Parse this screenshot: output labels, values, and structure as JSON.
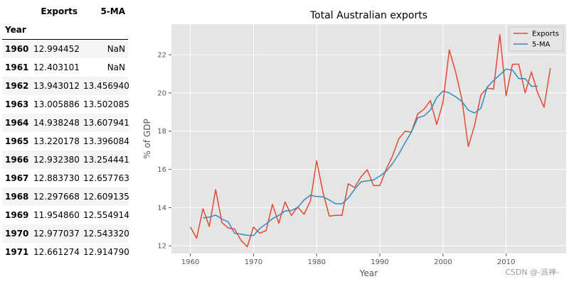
{
  "table": {
    "columns": [
      "Exports",
      "5-MA"
    ],
    "index_name": "Year",
    "rows": [
      {
        "year": "1960",
        "exports": "12.994452",
        "ma": "NaN"
      },
      {
        "year": "1961",
        "exports": "12.403101",
        "ma": "NaN"
      },
      {
        "year": "1962",
        "exports": "13.943012",
        "ma": "13.456940"
      },
      {
        "year": "1963",
        "exports": "13.005886",
        "ma": "13.502085"
      },
      {
        "year": "1964",
        "exports": "14.938248",
        "ma": "13.607941"
      },
      {
        "year": "1965",
        "exports": "13.220178",
        "ma": "13.396084"
      },
      {
        "year": "1966",
        "exports": "12.932380",
        "ma": "13.254441"
      },
      {
        "year": "1967",
        "exports": "12.883730",
        "ma": "12.657763"
      },
      {
        "year": "1968",
        "exports": "12.297668",
        "ma": "12.609135"
      },
      {
        "year": "1969",
        "exports": "11.954860",
        "ma": "12.554914"
      },
      {
        "year": "1970",
        "exports": "12.977037",
        "ma": "12.543320"
      },
      {
        "year": "1971",
        "exports": "12.661274",
        "ma": "12.914790"
      }
    ]
  },
  "chart_data": {
    "type": "line",
    "title": "Total Australian exports",
    "xlabel": "Year",
    "ylabel": "% of GDP",
    "xlim": [
      1957,
      2019.5
    ],
    "ylim": [
      11.6,
      23.6
    ],
    "xticks": [
      1960,
      1970,
      1980,
      1990,
      2000,
      2010
    ],
    "yticks": [
      12,
      14,
      16,
      18,
      20,
      22
    ],
    "grid": true,
    "legend_position": "top-right",
    "background": "#e5e5e5",
    "series": [
      {
        "name": "Exports",
        "color": "#e24a33",
        "x": [
          1960,
          1961,
          1962,
          1963,
          1964,
          1965,
          1966,
          1967,
          1968,
          1969,
          1970,
          1971,
          1972,
          1973,
          1974,
          1975,
          1976,
          1977,
          1978,
          1979,
          1980,
          1981,
          1982,
          1983,
          1984,
          1985,
          1986,
          1987,
          1988,
          1989,
          1990,
          1991,
          1992,
          1993,
          1994,
          1995,
          1996,
          1997,
          1998,
          1999,
          2000,
          2001,
          2002,
          2003,
          2004,
          2005,
          2006,
          2007,
          2008,
          2009,
          2010,
          2011,
          2012,
          2013,
          2014,
          2015,
          2016,
          2017
        ],
        "y": [
          12.99,
          12.4,
          13.94,
          13.01,
          14.94,
          13.22,
          12.93,
          12.88,
          12.3,
          11.95,
          12.98,
          12.66,
          12.8,
          14.17,
          13.18,
          14.3,
          13.59,
          14.03,
          13.65,
          14.35,
          16.45,
          14.8,
          13.55,
          13.6,
          13.6,
          15.25,
          15.05,
          15.6,
          15.98,
          15.15,
          15.15,
          16.0,
          16.7,
          17.6,
          18.0,
          17.95,
          18.9,
          19.15,
          19.6,
          18.35,
          19.5,
          22.25,
          21.1,
          19.65,
          17.2,
          18.3,
          19.9,
          20.25,
          20.2,
          23.05,
          19.85,
          21.5,
          21.5,
          20.0,
          21.1,
          20.0,
          19.25,
          21.3
        ]
      },
      {
        "name": "5-MA",
        "color": "#348abd",
        "x": [
          1962,
          1963,
          1964,
          1965,
          1966,
          1967,
          1968,
          1969,
          1970,
          1971,
          1972,
          1973,
          1974,
          1975,
          1976,
          1977,
          1978,
          1979,
          1980,
          1981,
          1982,
          1983,
          1984,
          1985,
          1986,
          1987,
          1988,
          1989,
          1990,
          1991,
          1992,
          1993,
          1994,
          1995,
          1996,
          1997,
          1998,
          1999,
          2000,
          2001,
          2002,
          2003,
          2004,
          2005,
          2006,
          2007,
          2008,
          2009,
          2010,
          2011,
          2012,
          2013,
          2014,
          2015
        ],
        "y": [
          13.46,
          13.5,
          13.61,
          13.4,
          13.25,
          12.66,
          12.61,
          12.55,
          12.54,
          12.91,
          13.15,
          13.42,
          13.6,
          13.82,
          13.85,
          14.01,
          14.4,
          14.65,
          14.58,
          14.56,
          14.4,
          14.2,
          14.2,
          14.5,
          14.95,
          15.35,
          15.4,
          15.45,
          15.65,
          15.9,
          16.3,
          16.8,
          17.4,
          17.95,
          18.7,
          18.8,
          19.1,
          19.75,
          20.1,
          20.0,
          19.8,
          19.55,
          19.1,
          18.95,
          19.2,
          20.3,
          20.65,
          20.95,
          21.25,
          21.2,
          20.75,
          20.75,
          20.35,
          20.35
        ]
      }
    ]
  },
  "watermark": "CSDN @-派神-"
}
